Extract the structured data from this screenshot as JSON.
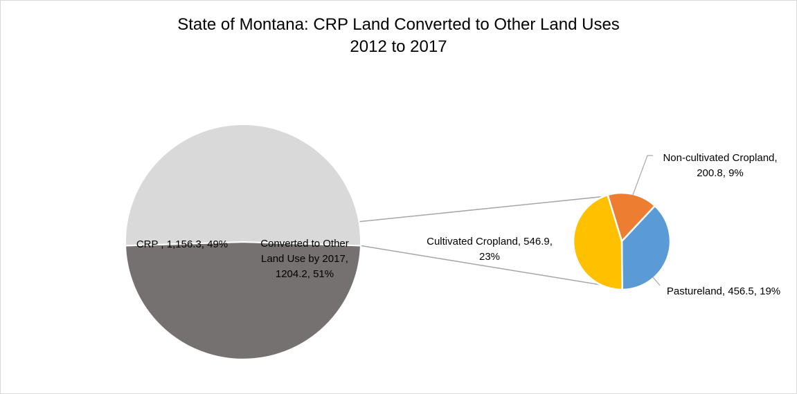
{
  "chart_data": {
    "type": "pie",
    "subtype": "pie-of-pie",
    "title": "State of Montana: CRP Land Converted to Other Land Uses",
    "subtitle": "2012 to 2017",
    "primary": {
      "slices": [
        {
          "name": "CRP ",
          "value": 1156.3,
          "value_label": "1,156.3",
          "percent": 49,
          "color": "#767171"
        },
        {
          "name": "Converted to Other Land Use by 2017",
          "value": 1204.2,
          "value_label": "1204.2",
          "percent": 51,
          "color": "#d9d9d9"
        }
      ]
    },
    "secondary": {
      "slices": [
        {
          "name": "Non-cultivated Cropland",
          "value": 200.8,
          "value_label": "200.8",
          "percent": 9,
          "color": "#ed7d31"
        },
        {
          "name": "Pastureland",
          "value": 456.5,
          "value_label": "456.5",
          "percent": 19,
          "color": "#5b9bd5"
        },
        {
          "name": "Cultivated Cropland",
          "value": 546.9,
          "value_label": "546.9",
          "percent": 23,
          "color": "#ffc000"
        }
      ]
    },
    "labels": {
      "crp": [
        "CRP , 1,156.3, 49%"
      ],
      "converted": [
        "Converted to Other",
        "Land Use by 2017,",
        "1204.2, 51%"
      ],
      "noncultivated": [
        "Non-cultivated Cropland,",
        "200.8, 9%"
      ],
      "cultivated": [
        "Cultivated Cropland, 546.9,",
        "23%"
      ],
      "pastureland": [
        "Pastureland, 456.5, 19%"
      ]
    },
    "legend": "none",
    "grid": false
  }
}
